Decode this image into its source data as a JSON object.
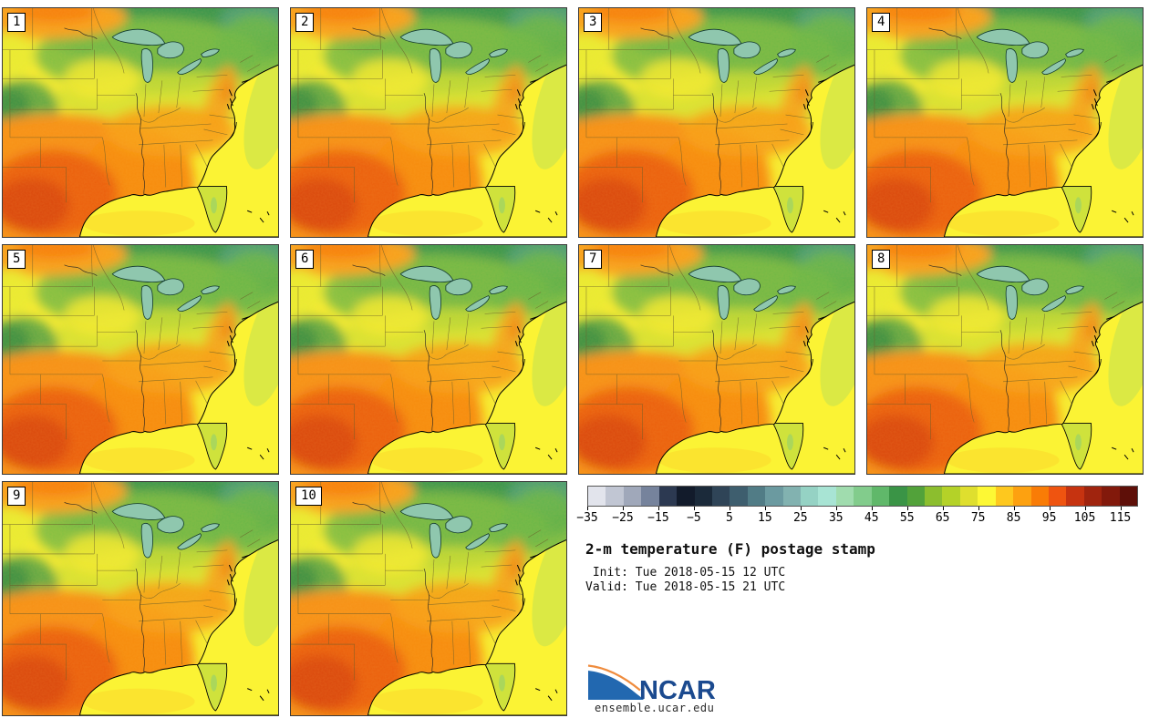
{
  "figure": {
    "title": "2-m temperature (F) postage stamp",
    "init_line": " Init: Tue 2018-05-15 12 UTC",
    "valid_line": "Valid: Tue 2018-05-15 21 UTC"
  },
  "stamps": {
    "members": [
      {
        "label": "1"
      },
      {
        "label": "2"
      },
      {
        "label": "3"
      },
      {
        "label": "4"
      },
      {
        "label": "5"
      },
      {
        "label": "6"
      },
      {
        "label": "7"
      },
      {
        "label": "8"
      },
      {
        "label": "9"
      },
      {
        "label": "10"
      }
    ],
    "border_color": "#3a3a3a"
  },
  "colorbar": {
    "units": "F",
    "range_min": -35,
    "range_max": 120,
    "segment_step": 5,
    "tick_step": 10,
    "tick_labels": [
      "−35",
      "−25",
      "−15",
      "−5",
      "5",
      "15",
      "25",
      "35",
      "45",
      "55",
      "65",
      "75",
      "85",
      "95",
      "105",
      "115"
    ],
    "segment_colors": [
      "#e2e4ec",
      "#c1c6d3",
      "#a0a8ba",
      "#76839c",
      "#2c3951",
      "#121b2b",
      "#1b2a3a",
      "#2f4457",
      "#3e5e6e",
      "#517c86",
      "#6b9aa0",
      "#82b2b0",
      "#95d2c4",
      "#a8e4d4",
      "#a0dcae",
      "#82cc8c",
      "#60b86a",
      "#3a9446",
      "#52a23a",
      "#8cbe2e",
      "#b4d228",
      "#dfdf2e",
      "#fdf834",
      "#fec81e",
      "#fda110",
      "#f97c06",
      "#ef5410",
      "#c63310",
      "#a0240e",
      "#82190b",
      "#5e0f08"
    ]
  },
  "map_colors": {
    "ocean_yellow": "#fbf334",
    "lakes_teal": "#8fc7ae",
    "north_green": "#37964e",
    "hot_core_red": "#d8440c",
    "coastline": "#000000"
  },
  "logo": {
    "text": "NCAR",
    "url_text": "ensemble.ucar.edu",
    "swoosh_blue": "#2268b0",
    "text_navy": "#1b4a8f",
    "arc_orange": "#ef8c3e"
  }
}
